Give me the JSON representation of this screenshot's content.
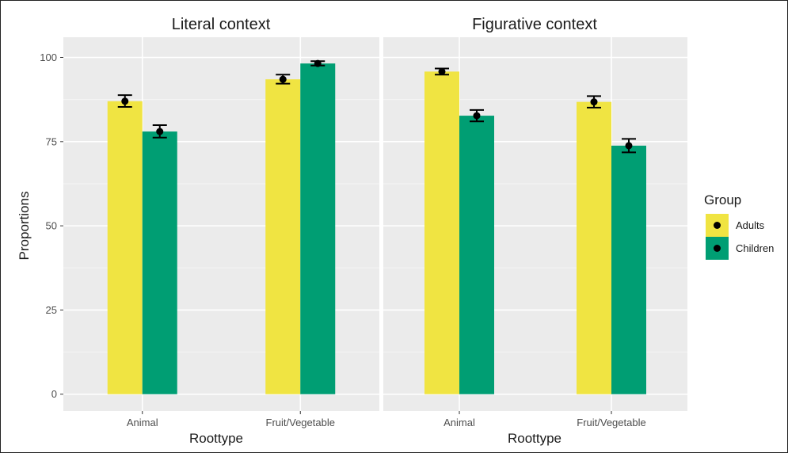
{
  "chart_data": {
    "type": "bar",
    "facets": [
      {
        "title": "Literal context",
        "categories": [
          "Animal",
          "Fruit/Vegetable"
        ],
        "series": [
          {
            "name": "Adults",
            "values": [
              87,
              93.5
            ],
            "error_low": [
              85.3,
              92.2
            ],
            "error_high": [
              88.8,
              94.9
            ]
          },
          {
            "name": "Children",
            "values": [
              78,
              98.2
            ],
            "error_low": [
              76.2,
              97.6
            ],
            "error_high": [
              79.9,
              98.9
            ]
          }
        ]
      },
      {
        "title": "Figurative context",
        "categories": [
          "Animal",
          "Fruit/Vegetable"
        ],
        "series": [
          {
            "name": "Adults",
            "values": [
              95.8,
              86.8
            ],
            "error_low": [
              94.9,
              85.1
            ],
            "error_high": [
              96.7,
              88.5
            ]
          },
          {
            "name": "Children",
            "values": [
              82.7,
              73.8
            ],
            "error_low": [
              81.0,
              71.8
            ],
            "error_high": [
              84.4,
              75.8
            ]
          }
        ]
      }
    ],
    "series_colors": {
      "Adults": "#f0e442",
      "Children": "#009e73"
    },
    "xlabel": "Roottype",
    "ylabel": "Proportions",
    "ylim": [
      -5,
      106
    ],
    "yticks": [
      0,
      25,
      50,
      75,
      100
    ],
    "legend": {
      "title": "Group",
      "position": "right",
      "items": [
        "Adults",
        "Children"
      ]
    },
    "panel_background": "#ebebeb",
    "grid": true
  }
}
